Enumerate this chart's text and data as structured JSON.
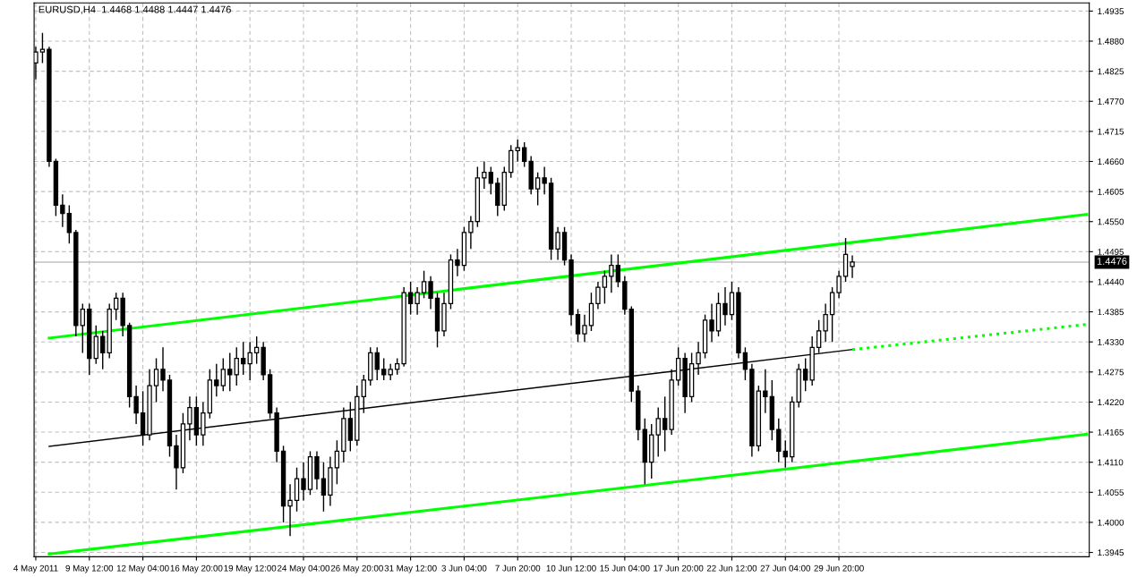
{
  "chart_data": {
    "type": "candlestick",
    "title": "EURUSD,H4  1.4468 1.4488 1.4447 1.4476",
    "categories": [
      "4 May 2011",
      null,
      null,
      null,
      null,
      null,
      null,
      null,
      "9 May 12:00",
      null,
      null,
      null,
      null,
      null,
      null,
      null,
      "12 May 04:00",
      null,
      null,
      null,
      null,
      null,
      null,
      null,
      "16 May 20:00",
      null,
      null,
      null,
      null,
      null,
      null,
      null,
      "19 May 12:00",
      null,
      null,
      null,
      null,
      null,
      null,
      null,
      "24 May 04:00",
      null,
      null,
      null,
      null,
      null,
      null,
      null,
      "26 May 20:00",
      null,
      null,
      null,
      null,
      null,
      null,
      null,
      "31 May 12:00",
      null,
      null,
      null,
      null,
      null,
      null,
      null,
      "3 Jun 04:00",
      null,
      null,
      null,
      null,
      null,
      null,
      null,
      "7 Jun 20:00",
      null,
      null,
      null,
      null,
      null,
      null,
      null,
      "10 Jun 12:00",
      null,
      null,
      null,
      null,
      null,
      null,
      null,
      "15 Jun 04:00",
      null,
      null,
      null,
      null,
      null,
      null,
      null,
      "17 Jun 20:00",
      null,
      null,
      null,
      null,
      null,
      null,
      null,
      "22 Jun 12:00",
      null,
      null,
      null,
      null,
      null,
      null,
      null,
      "27 Jun 04:00",
      null,
      null,
      null,
      null,
      null,
      null,
      null,
      "29 Jun 20:00",
      null,
      null,
      null,
      null,
      null,
      null,
      null,
      null,
      null,
      null,
      null,
      null,
      null,
      null,
      null,
      null,
      null,
      null,
      null,
      null,
      null,
      null,
      null,
      null,
      null,
      null,
      null,
      null,
      null,
      null,
      null,
      null,
      null,
      null,
      null,
      null,
      null
    ],
    "ohlc": [
      [
        1.484,
        1.487,
        1.481,
        1.486
      ],
      [
        1.486,
        1.4895,
        1.484,
        1.4865
      ],
      [
        1.4865,
        1.487,
        1.465,
        1.466
      ],
      [
        1.466,
        1.4665,
        1.456,
        1.458
      ],
      [
        1.458,
        1.46,
        1.454,
        1.4565
      ],
      [
        1.4565,
        1.458,
        1.451,
        1.453
      ],
      [
        1.453,
        1.4535,
        1.434,
        1.436
      ],
      [
        1.436,
        1.44,
        1.431,
        1.439
      ],
      [
        1.439,
        1.44,
        1.427,
        1.43
      ],
      [
        1.43,
        1.436,
        1.429,
        1.434
      ],
      [
        1.434,
        1.435,
        1.428,
        1.431
      ],
      [
        1.431,
        1.44,
        1.43,
        1.439
      ],
      [
        1.439,
        1.442,
        1.437,
        1.441
      ],
      [
        1.441,
        1.442,
        1.434,
        1.436
      ],
      [
        1.436,
        1.4365,
        1.421,
        1.423
      ],
      [
        1.423,
        1.425,
        1.418,
        1.42
      ],
      [
        1.42,
        1.424,
        1.414,
        1.416
      ],
      [
        1.416,
        1.428,
        1.415,
        1.425
      ],
      [
        1.425,
        1.43,
        1.422,
        1.428
      ],
      [
        1.428,
        1.432,
        1.424,
        1.426
      ],
      [
        1.426,
        1.427,
        1.412,
        1.414
      ],
      [
        1.414,
        1.416,
        1.406,
        1.41
      ],
      [
        1.41,
        1.42,
        1.409,
        1.418
      ],
      [
        1.418,
        1.423,
        1.415,
        1.421
      ],
      [
        1.421,
        1.423,
        1.414,
        1.416
      ],
      [
        1.416,
        1.422,
        1.414,
        1.42
      ],
      [
        1.42,
        1.428,
        1.419,
        1.426
      ],
      [
        1.426,
        1.429,
        1.423,
        1.425
      ],
      [
        1.425,
        1.43,
        1.424,
        1.428
      ],
      [
        1.428,
        1.431,
        1.424,
        1.427
      ],
      [
        1.427,
        1.432,
        1.425,
        1.43
      ],
      [
        1.43,
        1.433,
        1.427,
        1.429
      ],
      [
        1.429,
        1.433,
        1.426,
        1.431
      ],
      [
        1.431,
        1.434,
        1.429,
        1.432
      ],
      [
        1.432,
        1.433,
        1.426,
        1.427
      ],
      [
        1.427,
        1.428,
        1.419,
        1.42
      ],
      [
        1.42,
        1.421,
        1.411,
        1.413
      ],
      [
        1.413,
        1.414,
        1.4,
        1.403
      ],
      [
        1.403,
        1.407,
        1.3975,
        1.404
      ],
      [
        1.404,
        1.41,
        1.402,
        1.408
      ],
      [
        1.408,
        1.411,
        1.404,
        1.406
      ],
      [
        1.406,
        1.413,
        1.405,
        1.412
      ],
      [
        1.412,
        1.413,
        1.406,
        1.408
      ],
      [
        1.408,
        1.411,
        1.402,
        1.405
      ],
      [
        1.405,
        1.412,
        1.403,
        1.41
      ],
      [
        1.41,
        1.415,
        1.407,
        1.413
      ],
      [
        1.413,
        1.421,
        1.411,
        1.419
      ],
      [
        1.419,
        1.422,
        1.413,
        1.415
      ],
      [
        1.415,
        1.425,
        1.414,
        1.423
      ],
      [
        1.423,
        1.427,
        1.42,
        1.426
      ],
      [
        1.426,
        1.432,
        1.425,
        1.431
      ],
      [
        1.431,
        1.432,
        1.426,
        1.428
      ],
      [
        1.428,
        1.43,
        1.426,
        1.427
      ],
      [
        1.427,
        1.429,
        1.426,
        1.428
      ],
      [
        1.428,
        1.43,
        1.427,
        1.429
      ],
      [
        1.429,
        1.443,
        1.4285,
        1.442
      ],
      [
        1.442,
        1.444,
        1.438,
        1.44
      ],
      [
        1.44,
        1.443,
        1.438,
        1.442
      ],
      [
        1.442,
        1.446,
        1.441,
        1.444
      ],
      [
        1.444,
        1.445,
        1.439,
        1.441
      ],
      [
        1.441,
        1.442,
        1.432,
        1.435
      ],
      [
        1.435,
        1.442,
        1.434,
        1.44
      ],
      [
        1.44,
        1.449,
        1.439,
        1.448
      ],
      [
        1.448,
        1.45,
        1.445,
        1.447
      ],
      [
        1.447,
        1.454,
        1.446,
        1.453
      ],
      [
        1.453,
        1.456,
        1.45,
        1.455
      ],
      [
        1.455,
        1.465,
        1.454,
        1.463
      ],
      [
        1.463,
        1.466,
        1.461,
        1.464
      ],
      [
        1.464,
        1.465,
        1.46,
        1.462
      ],
      [
        1.462,
        1.463,
        1.456,
        1.458
      ],
      [
        1.458,
        1.465,
        1.457,
        1.464
      ],
      [
        1.464,
        1.469,
        1.463,
        1.468
      ],
      [
        1.468,
        1.47,
        1.466,
        1.4685
      ],
      [
        1.4685,
        1.4695,
        1.465,
        1.466
      ],
      [
        1.466,
        1.467,
        1.46,
        1.461
      ],
      [
        1.461,
        1.464,
        1.458,
        1.463
      ],
      [
        1.463,
        1.465,
        1.46,
        1.462
      ],
      [
        1.462,
        1.463,
        1.448,
        1.45
      ],
      [
        1.45,
        1.454,
        1.448,
        1.453
      ],
      [
        1.453,
        1.454,
        1.447,
        1.448
      ],
      [
        1.448,
        1.449,
        1.436,
        1.438
      ],
      [
        1.438,
        1.439,
        1.433,
        1.4345
      ],
      [
        1.4345,
        1.438,
        1.433,
        1.436
      ],
      [
        1.436,
        1.442,
        1.435,
        1.44
      ],
      [
        1.44,
        1.444,
        1.439,
        1.443
      ],
      [
        1.443,
        1.446,
        1.44,
        1.445
      ],
      [
        1.445,
        1.449,
        1.442,
        1.447
      ],
      [
        1.447,
        1.449,
        1.443,
        1.444
      ],
      [
        1.444,
        1.445,
        1.438,
        1.439
      ],
      [
        1.439,
        1.4395,
        1.422,
        1.424
      ],
      [
        1.424,
        1.425,
        1.415,
        1.417
      ],
      [
        1.417,
        1.419,
        1.407,
        1.411
      ],
      [
        1.411,
        1.418,
        1.408,
        1.416
      ],
      [
        1.416,
        1.421,
        1.412,
        1.419
      ],
      [
        1.419,
        1.423,
        1.413,
        1.417
      ],
      [
        1.417,
        1.428,
        1.416,
        1.426
      ],
      [
        1.426,
        1.432,
        1.425,
        1.43
      ],
      [
        1.43,
        1.431,
        1.42,
        1.423
      ],
      [
        1.423,
        1.431,
        1.422,
        1.429
      ],
      [
        1.429,
        1.433,
        1.427,
        1.431
      ],
      [
        1.431,
        1.438,
        1.43,
        1.437
      ],
      [
        1.437,
        1.44,
        1.433,
        1.435
      ],
      [
        1.435,
        1.442,
        1.434,
        1.44
      ],
      [
        1.44,
        1.443,
        1.436,
        1.438
      ],
      [
        1.438,
        1.444,
        1.437,
        1.442
      ],
      [
        1.442,
        1.443,
        1.43,
        1.431
      ],
      [
        1.431,
        1.432,
        1.426,
        1.428
      ],
      [
        1.428,
        1.429,
        1.412,
        1.414
      ],
      [
        1.414,
        1.425,
        1.413,
        1.424
      ],
      [
        1.424,
        1.428,
        1.42,
        1.423
      ],
      [
        1.423,
        1.426,
        1.415,
        1.417
      ],
      [
        1.417,
        1.419,
        1.411,
        1.413
      ],
      [
        1.413,
        1.415,
        1.41,
        1.412
      ],
      [
        1.412,
        1.423,
        1.411,
        1.422
      ],
      [
        1.422,
        1.429,
        1.421,
        1.428
      ],
      [
        1.428,
        1.43,
        1.424,
        1.426
      ],
      [
        1.426,
        1.434,
        1.425,
        1.432
      ],
      [
        1.432,
        1.437,
        1.431,
        1.435
      ],
      [
        1.435,
        1.44,
        1.433,
        1.438
      ],
      [
        1.438,
        1.443,
        1.433,
        1.442
      ],
      [
        1.442,
        1.446,
        1.441,
        1.445
      ],
      [
        1.445,
        1.452,
        1.444,
        1.449
      ],
      [
        1.4468,
        1.4488,
        1.4447,
        1.4476
      ],
      null,
      null,
      null,
      null,
      null,
      null,
      null,
      null,
      null,
      null,
      null,
      null,
      null,
      null,
      null,
      null,
      null,
      null,
      null,
      null,
      null,
      null,
      null,
      null,
      null,
      null,
      null,
      null,
      null,
      null,
      null,
      null,
      null,
      null,
      null
    ],
    "series": [
      {
        "type": "line",
        "color": "#00ff00",
        "line_style": "solid",
        "values": [
          null,
          null,
          1.4337,
          null,
          null,
          null,
          null,
          null,
          null,
          null,
          null,
          null,
          null,
          null,
          null,
          null,
          null,
          null,
          null,
          null,
          null,
          null,
          null,
          null,
          null,
          null,
          null,
          null,
          null,
          null,
          null,
          null,
          null,
          null,
          null,
          null,
          null,
          null,
          null,
          null,
          null,
          null,
          null,
          null,
          null,
          null,
          null,
          null,
          null,
          null,
          null,
          null,
          null,
          null,
          null,
          null,
          null,
          null,
          null,
          null,
          null,
          null,
          null,
          null,
          null,
          null,
          null,
          null,
          null,
          null,
          null,
          null,
          null,
          null,
          null,
          null,
          null,
          null,
          null,
          null,
          null,
          null,
          null,
          null,
          null,
          null,
          null,
          null,
          null,
          null,
          null,
          null,
          null,
          null,
          null,
          null,
          null,
          null,
          null,
          null,
          null,
          null,
          null,
          null,
          null,
          null,
          null,
          null,
          null,
          null,
          null,
          null,
          null,
          null,
          null,
          null,
          null,
          null,
          null,
          null,
          null,
          null,
          null,
          null,
          null,
          null,
          null,
          null,
          null,
          null,
          null,
          null,
          null,
          null,
          null,
          null,
          null,
          null,
          null,
          null,
          null,
          null,
          null,
          null,
          null,
          null,
          null,
          null,
          null,
          null,
          null,
          null,
          null,
          null,
          null,
          null,
          null,
          1.4563
        ]
      },
      {
        "type": "line",
        "color": "#000000",
        "line_style": "solid",
        "values": [
          null,
          null,
          1.4139,
          null,
          null,
          null,
          null,
          null,
          null,
          null,
          null,
          null,
          null,
          null,
          null,
          null,
          null,
          null,
          null,
          null,
          null,
          null,
          null,
          null,
          null,
          null,
          null,
          null,
          null,
          null,
          null,
          null,
          null,
          null,
          null,
          null,
          null,
          null,
          null,
          null,
          null,
          null,
          null,
          null,
          null,
          null,
          null,
          null,
          null,
          null,
          null,
          null,
          null,
          null,
          null,
          null,
          null,
          null,
          null,
          null,
          null,
          null,
          null,
          null,
          null,
          null,
          null,
          null,
          null,
          null,
          null,
          null,
          null,
          null,
          null,
          null,
          null,
          null,
          null,
          null,
          null,
          null,
          null,
          null,
          null,
          null,
          null,
          null,
          null,
          null,
          null,
          null,
          null,
          null,
          null,
          null,
          null,
          null,
          null,
          null,
          null,
          null,
          null,
          null,
          null,
          null,
          null,
          null,
          null,
          null,
          null,
          null,
          null,
          null,
          null,
          null,
          null,
          null,
          null,
          null,
          null,
          null,
          1.4316,
          null,
          null,
          null,
          null,
          null,
          null,
          null,
          null,
          null,
          null,
          null,
          null,
          null,
          null,
          null,
          null,
          null,
          null,
          null,
          null,
          null,
          null,
          null,
          null,
          null,
          null,
          null,
          null,
          null,
          null,
          null,
          null,
          null,
          null,
          null
        ]
      },
      {
        "type": "line",
        "color": "#00ff00",
        "line_style": "dotted",
        "values": [
          null,
          null,
          null,
          null,
          null,
          null,
          null,
          null,
          null,
          null,
          null,
          null,
          null,
          null,
          null,
          null,
          null,
          null,
          null,
          null,
          null,
          null,
          null,
          null,
          null,
          null,
          null,
          null,
          null,
          null,
          null,
          null,
          null,
          null,
          null,
          null,
          null,
          null,
          null,
          null,
          null,
          null,
          null,
          null,
          null,
          null,
          null,
          null,
          null,
          null,
          null,
          null,
          null,
          null,
          null,
          null,
          null,
          null,
          null,
          null,
          null,
          null,
          null,
          null,
          null,
          null,
          null,
          null,
          null,
          null,
          null,
          null,
          null,
          null,
          null,
          null,
          null,
          null,
          null,
          null,
          null,
          null,
          null,
          null,
          null,
          null,
          null,
          null,
          null,
          null,
          null,
          null,
          null,
          null,
          null,
          null,
          null,
          null,
          null,
          null,
          null,
          null,
          null,
          null,
          null,
          null,
          null,
          null,
          null,
          null,
          null,
          null,
          null,
          null,
          null,
          null,
          null,
          null,
          null,
          null,
          null,
          null,
          1.4316,
          null,
          null,
          null,
          null,
          null,
          null,
          null,
          null,
          null,
          null,
          null,
          null,
          null,
          null,
          null,
          null,
          null,
          null,
          null,
          null,
          null,
          null,
          null,
          null,
          null,
          null,
          null,
          null,
          null,
          null,
          null,
          null,
          null,
          null,
          1.4362
        ]
      },
      {
        "type": "line",
        "color": "#00ff00",
        "line_style": "solid",
        "values": [
          null,
          null,
          1.3942,
          null,
          null,
          null,
          null,
          null,
          null,
          null,
          null,
          null,
          null,
          null,
          null,
          null,
          null,
          null,
          null,
          null,
          null,
          null,
          null,
          null,
          null,
          null,
          null,
          null,
          null,
          null,
          null,
          null,
          null,
          null,
          null,
          null,
          null,
          null,
          null,
          null,
          null,
          null,
          null,
          null,
          null,
          null,
          null,
          null,
          null,
          null,
          null,
          null,
          null,
          null,
          null,
          null,
          null,
          null,
          null,
          null,
          null,
          null,
          null,
          null,
          null,
          null,
          null,
          null,
          null,
          null,
          null,
          null,
          null,
          null,
          null,
          null,
          null,
          null,
          null,
          null,
          null,
          null,
          null,
          null,
          null,
          null,
          null,
          null,
          null,
          null,
          null,
          null,
          null,
          null,
          null,
          null,
          null,
          null,
          null,
          null,
          null,
          null,
          null,
          null,
          null,
          null,
          null,
          null,
          null,
          null,
          null,
          null,
          null,
          null,
          null,
          null,
          null,
          null,
          null,
          null,
          null,
          null,
          null,
          null,
          null,
          null,
          null,
          null,
          null,
          null,
          null,
          null,
          null,
          null,
          null,
          null,
          null,
          null,
          null,
          null,
          null,
          null,
          null,
          null,
          null,
          null,
          null,
          null,
          null,
          null,
          null,
          null,
          null,
          null,
          null,
          null,
          null,
          1.4161
        ]
      }
    ],
    "ref_lines": [
      {
        "axis": "y",
        "value": 1.4476,
        "label": "1.4476",
        "color": "#c0c0c0"
      }
    ],
    "ylim": [
      1.3937,
      1.495
    ],
    "yticks": [
      {
        "value": 1.3945,
        "label": "1.3945"
      },
      {
        "value": 1.4,
        "label": "1.4000"
      },
      {
        "value": 1.4055,
        "label": "1.4055"
      },
      {
        "value": 1.411,
        "label": "1.4110"
      },
      {
        "value": 1.4165,
        "label": "1.4165"
      },
      {
        "value": 1.422,
        "label": "1.4220"
      },
      {
        "value": 1.4275,
        "label": "1.4275"
      },
      {
        "value": 1.433,
        "label": "1.4330"
      },
      {
        "value": 1.4385,
        "label": "1.4385"
      },
      {
        "value": 1.444,
        "label": "1.4440"
      },
      {
        "value": 1.4495,
        "label": "1.4495"
      },
      {
        "value": 1.455,
        "label": "1.4550"
      },
      {
        "value": 1.4605,
        "label": "1.4605"
      },
      {
        "value": 1.466,
        "label": "1.4660"
      },
      {
        "value": 1.4715,
        "label": "1.4715"
      },
      {
        "value": 1.477,
        "label": "1.4770"
      },
      {
        "value": 1.4825,
        "label": "1.4825"
      },
      {
        "value": 1.488,
        "label": "1.4880"
      },
      {
        "value": 1.4935,
        "label": "1.4935"
      }
    ],
    "grid": true
  }
}
